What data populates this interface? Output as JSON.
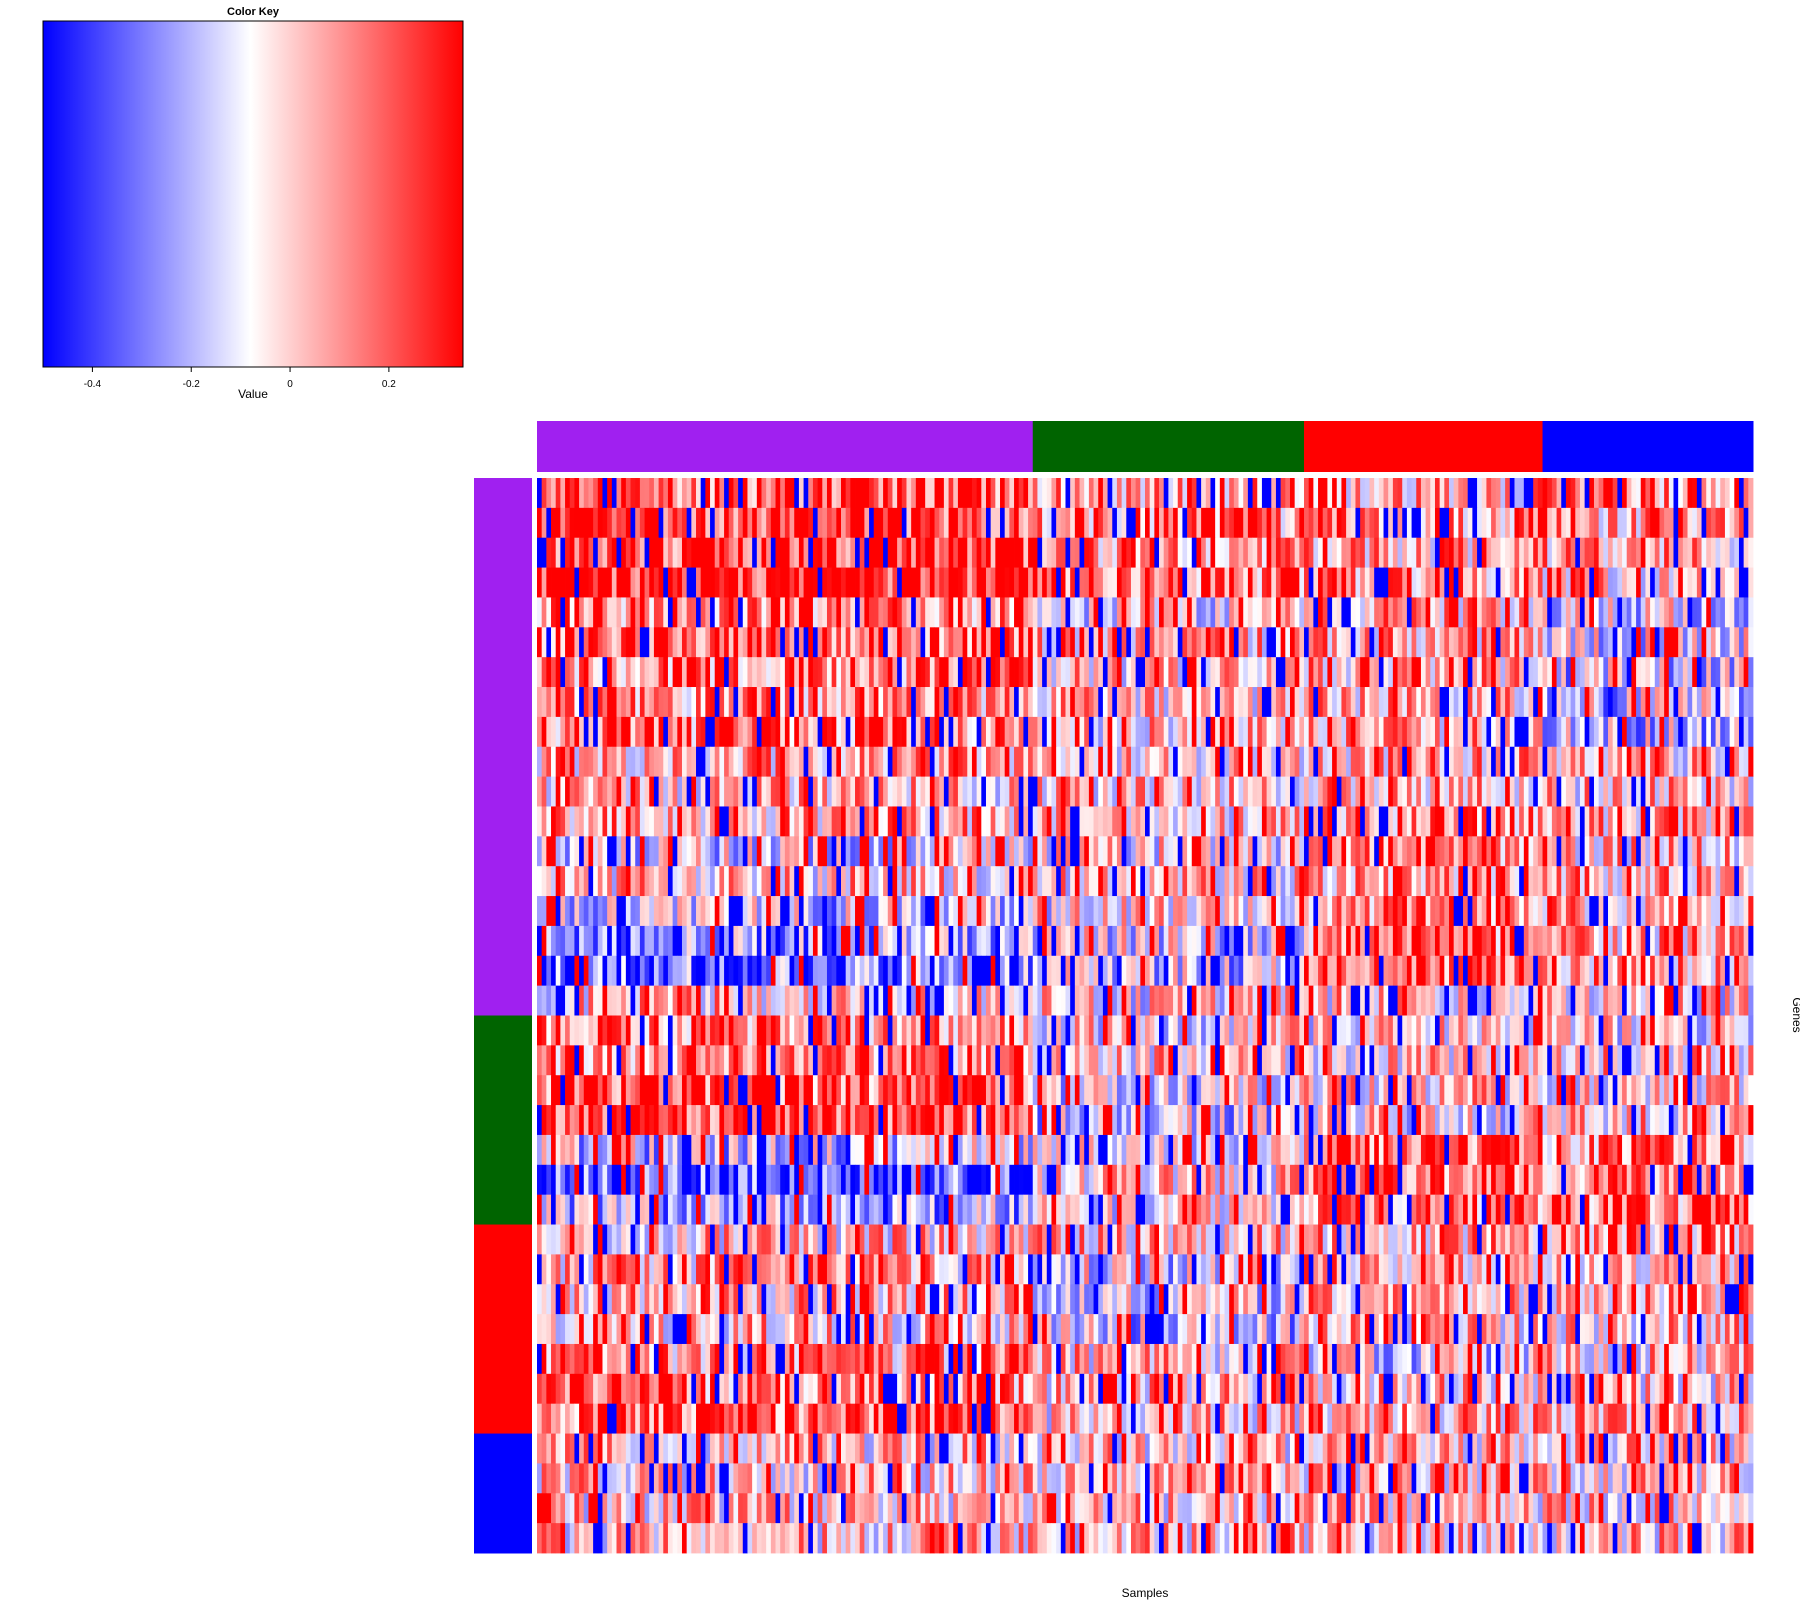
{
  "chart_data": {
    "type": "heatmap",
    "key": {
      "title": "Color Key",
      "xlabel": "Value",
      "range": [
        -0.5,
        0.35
      ],
      "ticks": [
        {
          "value": -0.4,
          "label": "-0.4"
        },
        {
          "value": -0.2,
          "label": "-0.2"
        },
        {
          "value": 0,
          "label": "0"
        },
        {
          "value": 0.2,
          "label": "0.2"
        }
      ],
      "low_color": "#0000ff",
      "mid_color": "#ffffff",
      "high_color": "#ff0000",
      "mid_value": -0.08
    },
    "xlabel": "Samples",
    "ylabel": "Genes",
    "grid": false,
    "n_rows": 36,
    "n_cols": 260,
    "column_groups": [
      {
        "color": "#a020f0",
        "count": 106
      },
      {
        "color": "#006400",
        "count": 58
      },
      {
        "color": "#ff0000",
        "count": 51
      },
      {
        "color": "#0000ff",
        "count": 45
      }
    ],
    "row_groups": [
      {
        "color": "#a020f0",
        "count": 18
      },
      {
        "color": "#006400",
        "count": 7
      },
      {
        "color": "#ff0000",
        "count": 7
      },
      {
        "color": "#0000ff",
        "count": 4
      }
    ],
    "row_group_means": [
      [
        0.22,
        0.25,
        0.25,
        0.3,
        0.15,
        0.2,
        0.15,
        0.1,
        0.15,
        0.05,
        0.0,
        0.05,
        -0.1,
        0.0,
        -0.15,
        -0.25,
        -0.3,
        0.0
      ],
      [
        0.1,
        0.12,
        0.12,
        0.15,
        -0.05,
        0.0,
        0.0,
        0.0,
        0.0,
        0.0,
        0.0,
        0.0,
        -0.05,
        0.0,
        -0.05,
        -0.1,
        -0.15,
        -0.05
      ],
      [
        0.05,
        0.1,
        0.05,
        0.1,
        0.05,
        0.05,
        0.05,
        0.05,
        0.05,
        0.05,
        0.05,
        0.1,
        0.15,
        0.1,
        0.15,
        0.15,
        0.2,
        0.0
      ],
      [
        0.15,
        0.05,
        0.05,
        0.0,
        -0.1,
        -0.1,
        -0.15,
        -0.15,
        -0.15,
        0.0,
        0.0,
        0.05,
        0.0,
        0.05,
        0.05,
        0.05,
        0.1,
        -0.05
      ]
    ],
    "extra_row_means": [
      [
        0.15,
        0.15,
        0.2,
        0.25,
        -0.15,
        -0.35,
        -0.2,
        0.0,
        0.05,
        0.05,
        0.0,
        0.1,
        0.15,
        0.2
      ],
      [
        -0.05,
        0.0,
        -0.1,
        -0.15,
        -0.05,
        0.0,
        -0.05,
        0.0,
        -0.1,
        -0.1,
        -0.15,
        0.0,
        0.0,
        0.0
      ],
      [
        -0.05,
        0.0,
        0.0,
        -0.05,
        0.2,
        0.2,
        0.15,
        0.05,
        0.05,
        0.05,
        0.0,
        -0.1,
        0.0,
        0.05
      ],
      [
        -0.05,
        0.0,
        0.0,
        0.0,
        0.1,
        0.15,
        0.15,
        0.1,
        0.05,
        0.05,
        0.0,
        0.0,
        0.0,
        0.05
      ]
    ],
    "random_seed": 20240611
  }
}
